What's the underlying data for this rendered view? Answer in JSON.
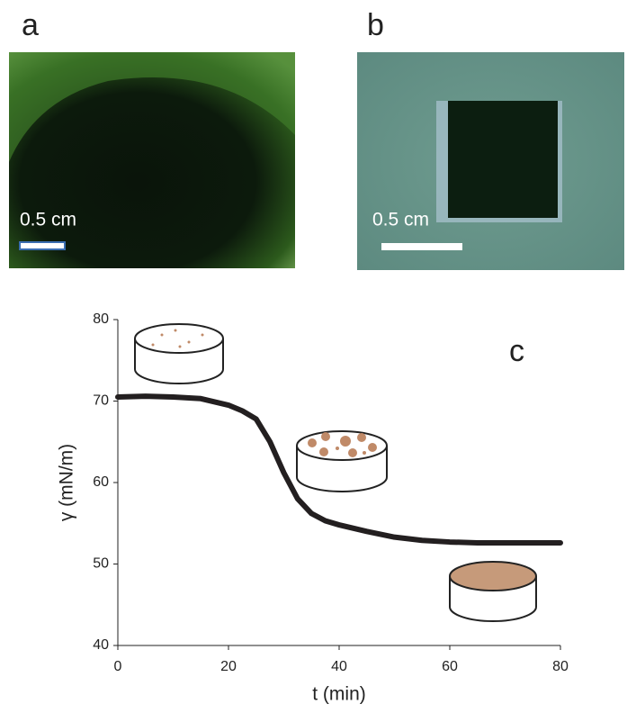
{
  "panels": [
    {
      "label": "a",
      "scale_text": "0.5 cm"
    },
    {
      "label": "b",
      "scale_text": "0.5 cm"
    }
  ],
  "chart_data": {
    "type": "line",
    "panel_label": "c",
    "x_label": "t (min)",
    "y_label": "γ (mN/m)",
    "x": [
      0,
      5,
      10,
      15,
      20,
      22.5,
      25,
      27.5,
      30,
      32.5,
      35,
      37.5,
      40,
      45,
      50,
      55,
      60,
      65,
      70,
      75,
      80
    ],
    "series": [
      {
        "name": "surface tension",
        "color": "#231f20",
        "values": [
          70.5,
          70.6,
          70.5,
          70.3,
          69.5,
          68.8,
          67.8,
          65,
          61.2,
          58,
          56.2,
          55.3,
          54.8,
          54,
          53.3,
          52.9,
          52.7,
          52.6,
          52.6,
          52.6,
          52.6
        ]
      }
    ],
    "xlim": [
      0,
      80
    ],
    "ylim": [
      40,
      80
    ],
    "xticks": [
      0,
      20,
      40,
      60,
      80
    ],
    "yticks": [
      40,
      50,
      60,
      70,
      80
    ]
  }
}
